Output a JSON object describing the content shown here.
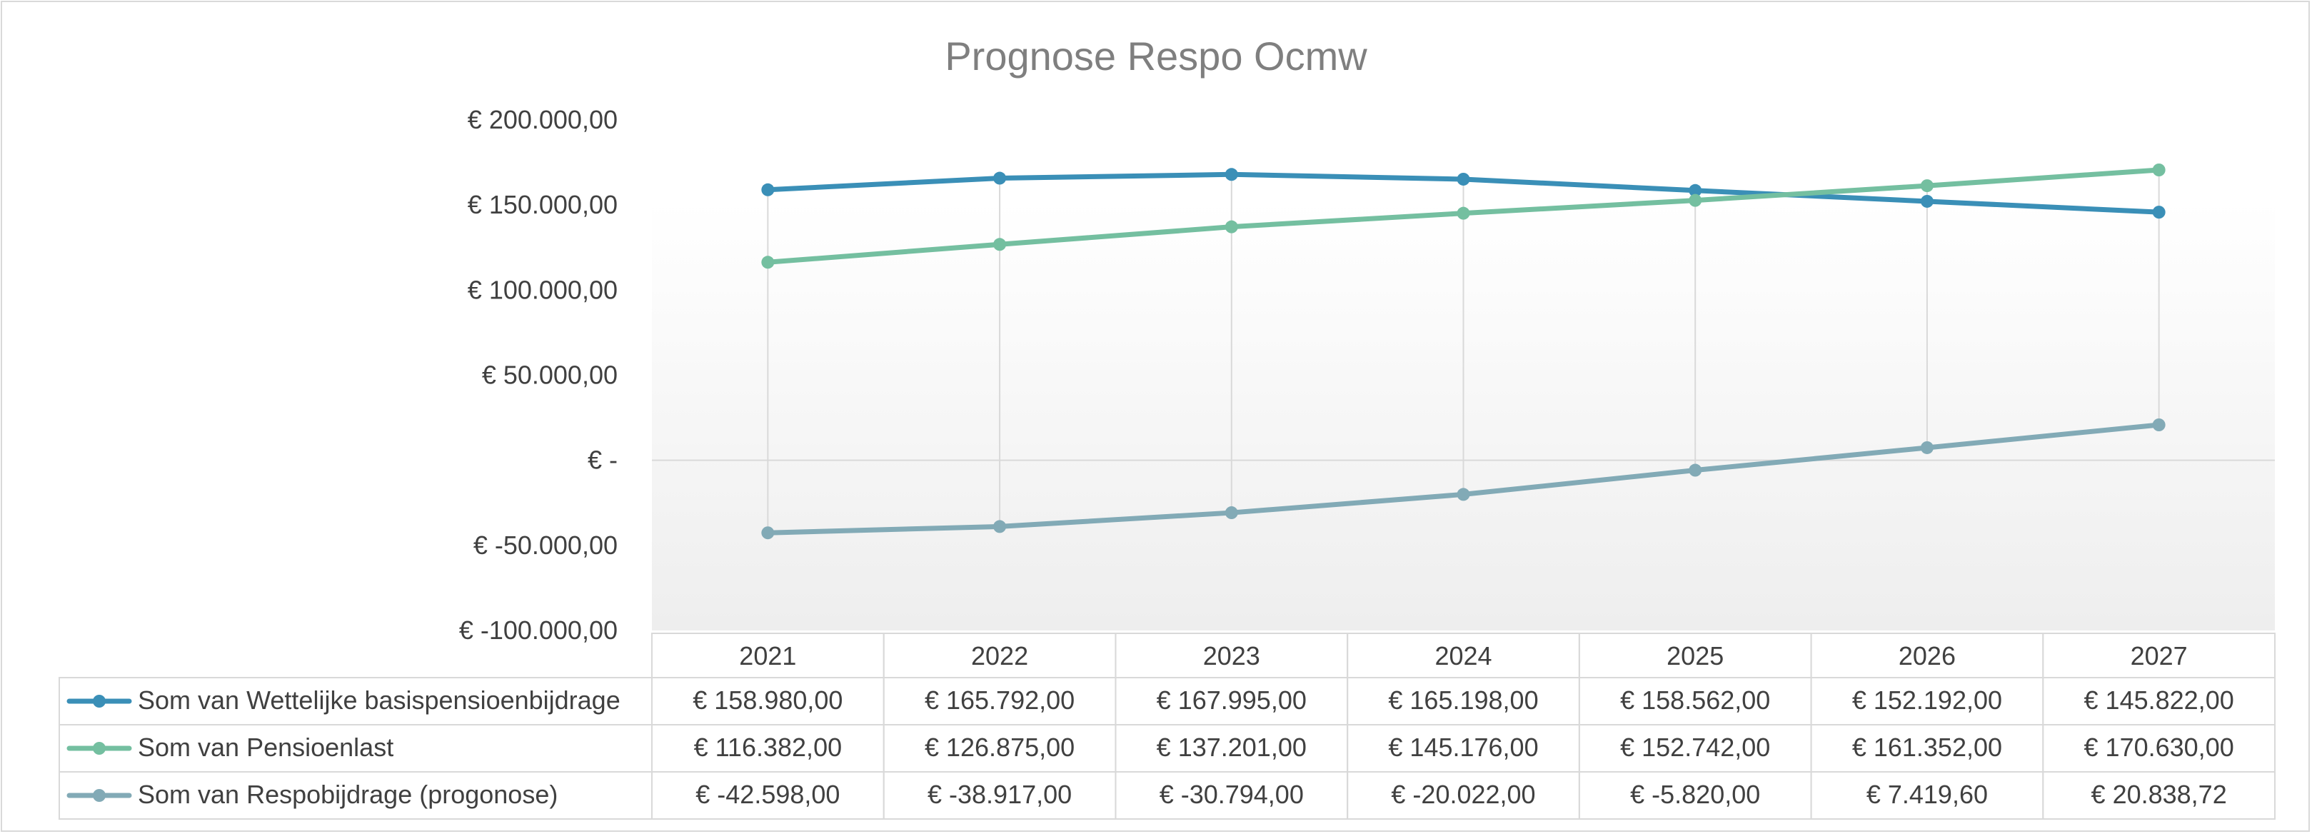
{
  "chart_data": {
    "type": "line",
    "title": "Prognose Respo Ocmw",
    "categories": [
      "2021",
      "2022",
      "2023",
      "2024",
      "2025",
      "2026",
      "2027"
    ],
    "ylim": [
      -100000,
      200000
    ],
    "y_tick_values": [
      200000,
      150000,
      100000,
      50000,
      0,
      -50000,
      -100000
    ],
    "y_tick_labels": [
      "€ 200.000,00",
      "€ 150.000,00",
      "€ 100.000,00",
      "€ 50.000,00",
      "€ -",
      "€ -50.000,00",
      "€ -100.000,00"
    ],
    "grid": "vertical",
    "legend": "data-table",
    "series": [
      {
        "name": "Som van Wettelijke basispensioenbijdrage",
        "color": "#3a8fb7",
        "values": [
          158980.0,
          165792.0,
          167995.0,
          165198.0,
          158562.0,
          152192.0,
          145822.0
        ],
        "labels": [
          "€ 158.980,00",
          "€ 165.792,00",
          "€ 167.995,00",
          "€ 165.198,00",
          "€ 158.562,00",
          "€ 152.192,00",
          "€ 145.822,00"
        ]
      },
      {
        "name": "Som van Pensioenlast",
        "color": "#74bfa0",
        "values": [
          116382.0,
          126875.0,
          137201.0,
          145176.0,
          152742.0,
          161352.0,
          170630.0
        ],
        "labels": [
          "€ 116.382,00",
          "€ 126.875,00",
          "€ 137.201,00",
          "€ 145.176,00",
          "€ 152.742,00",
          "€ 161.352,00",
          "€ 170.630,00"
        ]
      },
      {
        "name": "Som van Respobijdrage (progonose)",
        "color": "#82aab6",
        "values": [
          -42598.0,
          -38917.0,
          -30794.0,
          -20022.0,
          -5820.0,
          7419.6,
          20838.72
        ],
        "labels": [
          "€ -42.598,00",
          "€ -38.917,00",
          "€ -30.794,00",
          "€ -20.022,00",
          "€ -5.820,00",
          "€ 7.419,60",
          "€ 20.838,72"
        ]
      }
    ]
  }
}
